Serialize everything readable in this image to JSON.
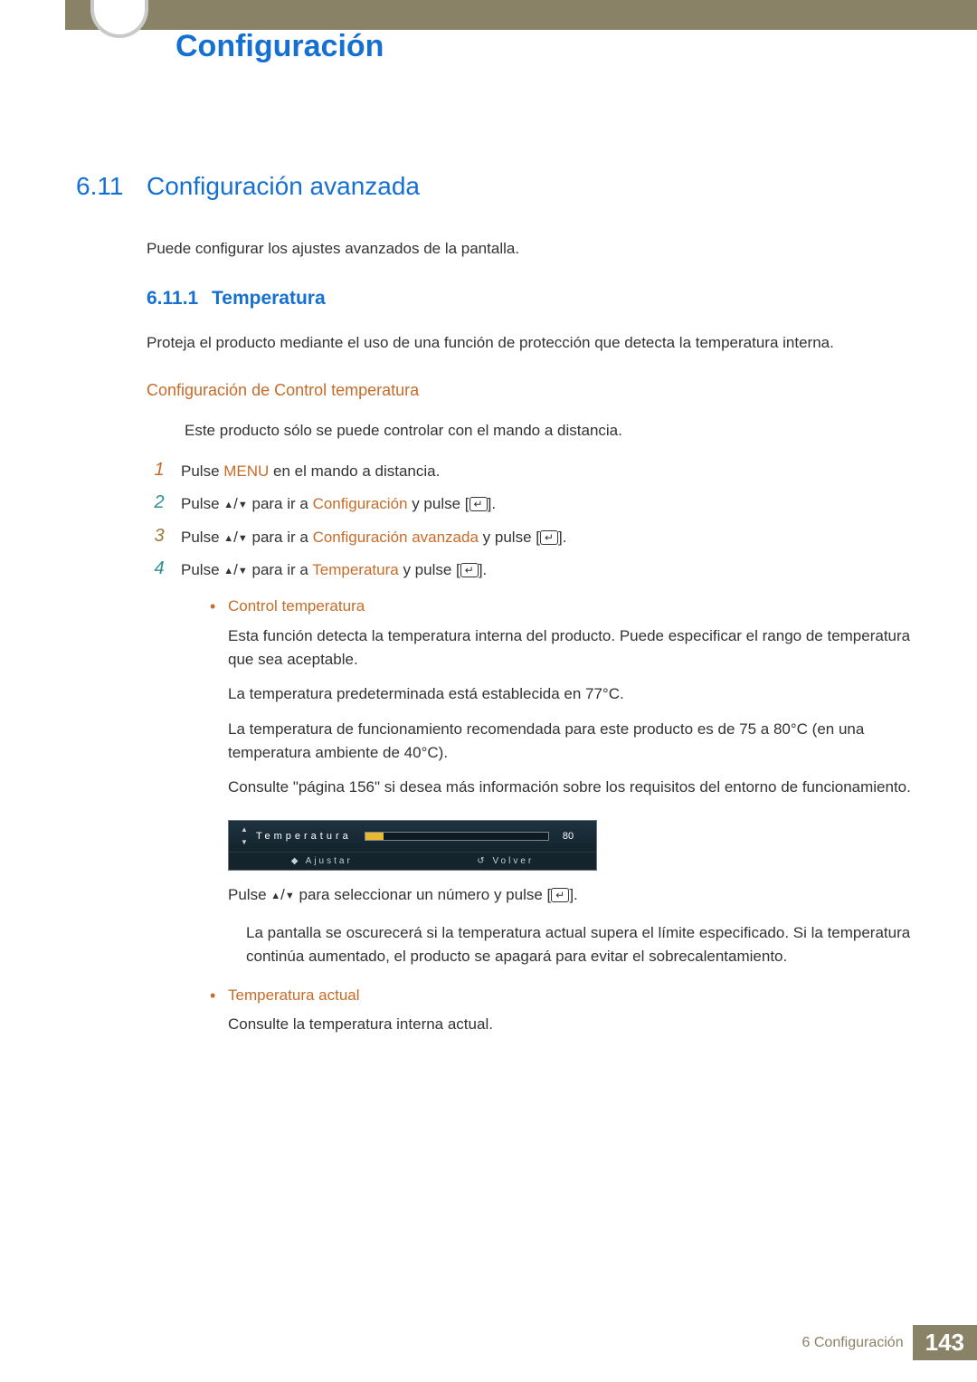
{
  "header": {
    "chapter_title": "Configuración"
  },
  "section": {
    "number": "6.11",
    "title": "Configuración avanzada",
    "intro": "Puede configurar los ajustes avanzados de la pantalla."
  },
  "subsection": {
    "number": "6.11.1",
    "title": "Temperatura",
    "intro": "Proteja el producto mediante el uso de una función de protección que detecta la temperatura interna."
  },
  "sub2": {
    "title": "Configuración de Control temperatura",
    "note": "Este producto sólo se puede controlar con el mando a distancia."
  },
  "steps": {
    "s1": {
      "n": "1",
      "pre": "Pulse ",
      "kw": "MENU",
      "post": " en el mando a distancia."
    },
    "s2": {
      "n": "2",
      "pre": "Pulse ",
      "mid": " para ir a ",
      "kw": "Configuración",
      "post": " y pulse [",
      "post2": "]."
    },
    "s3": {
      "n": "3",
      "pre": "Pulse ",
      "mid": " para ir a ",
      "kw": "Configuración avanzada",
      "post": " y pulse [",
      "post2": "]."
    },
    "s4": {
      "n": "4",
      "pre": "Pulse ",
      "mid": " para ir a ",
      "kw": "Temperatura",
      "post": " y pulse [",
      "post2": "]."
    }
  },
  "bullet1": {
    "title": "Control temperatura",
    "p1": "Esta función detecta la temperatura interna del producto. Puede especificar el rango de temperatura que sea aceptable.",
    "p2": "La temperatura predeterminada está establecida en 77°C.",
    "p3": "La temperatura de funcionamiento recomendada para este producto es de 75 a 80°C (en una temperatura ambiente de 40°C).",
    "p4": "Consulte \"página 156\" si desea más información sobre los requisitos del entorno de funcionamiento.",
    "after_osd_pre": "Pulse ",
    "after_osd_post": " para seleccionar un número y pulse [",
    "after_osd_post2": "].",
    "warn": "La pantalla se oscurecerá si la temperatura actual supera el límite especificado. Si la temperatura continúa aumentado, el producto se apagará para evitar el sobrecalentamiento."
  },
  "bullet2": {
    "title": "Temperatura actual",
    "p1": "Consulte la temperatura interna actual."
  },
  "osd": {
    "label": "Temperatura",
    "value": "80",
    "bar_fill_pct": 10,
    "left_action": "Ajustar",
    "right_action": "Volver",
    "bg_color": "#1a2f3a",
    "fill_color": "#e8b933",
    "text_color": "#ffffff"
  },
  "footer": {
    "label": "6 Configuración",
    "page": "143"
  },
  "glyphs": {
    "up": "▲",
    "down": "▼",
    "enter": "↵",
    "slash": "/"
  },
  "colors": {
    "brand_blue": "#1570d2",
    "accent_orange": "#c76b28",
    "khaki": "#8a8266"
  }
}
